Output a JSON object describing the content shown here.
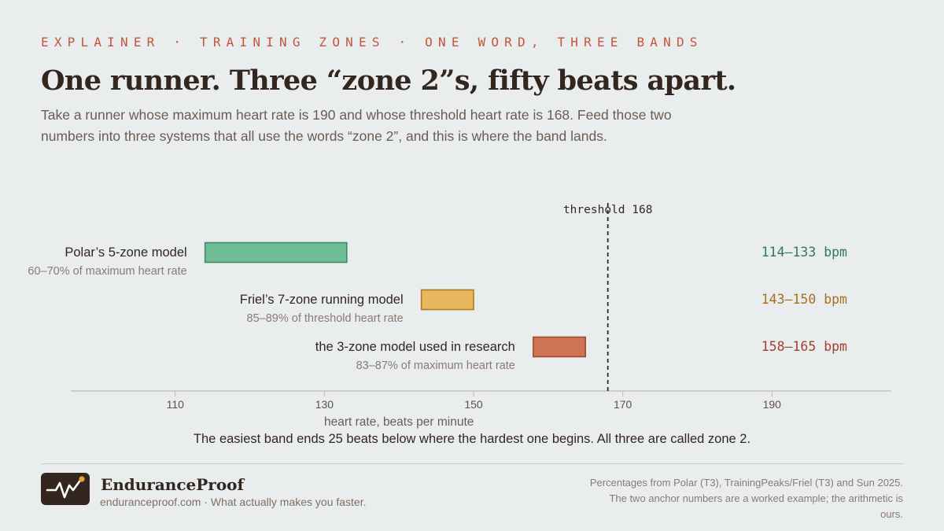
{
  "header": {
    "kicker": "EXPLAINER · TRAINING ZONES · ONE WORD, THREE BANDS",
    "title": "One runner. Three “zone 2”s, fifty beats apart.",
    "subtitle": "Take a runner whose maximum heart rate is 190 and whose threshold heart rate is 168. Feed those two numbers into three systems that all use the words “zone 2”, and this is where the band lands."
  },
  "chart_data": {
    "type": "bar",
    "orientation": "horizontal-range",
    "xlabel": "heart rate, beats per minute",
    "xlim": [
      96,
      206
    ],
    "xticks": [
      110,
      130,
      150,
      170,
      190
    ],
    "reference_line": {
      "value": 168,
      "label": "threshold 168"
    },
    "series": [
      {
        "name": "Polar’s 5-zone model",
        "note": "60–70% of maximum heart rate",
        "low": 114,
        "high": 133,
        "range_label": "114–133 bpm",
        "fill": "#6fbe96",
        "stroke": "#3f8a62",
        "text_color": "#2f7a52"
      },
      {
        "name": "Friel’s 7-zone running model",
        "note": "85–89% of threshold heart rate",
        "low": 143,
        "high": 150,
        "range_label": "143–150 bpm",
        "fill": "#e8b85e",
        "stroke": "#b07822",
        "text_color": "#a8701e"
      },
      {
        "name": "the 3-zone model used in research",
        "note": "83–87% of maximum heart rate",
        "low": 158,
        "high": 165,
        "range_label": "158–165 bpm",
        "fill": "#cd7455",
        "stroke": "#a24a30",
        "text_color": "#a2412a"
      }
    ]
  },
  "caption": "The easiest band ends 25 beats below where the hardest one begins. All three are called zone 2.",
  "footer": {
    "brand": "EnduranceProof",
    "tagline": "enduranceproof.com · What actually makes you faster.",
    "sources": "Percentages from Polar (T3), TrainingPeaks/Friel (T3) and Sun 2025. The two anchor numbers are a worked example; the arithmetic is ours.",
    "logo_icon": "heartbeat-pulse-icon",
    "accent_color": "#e8a33a"
  }
}
